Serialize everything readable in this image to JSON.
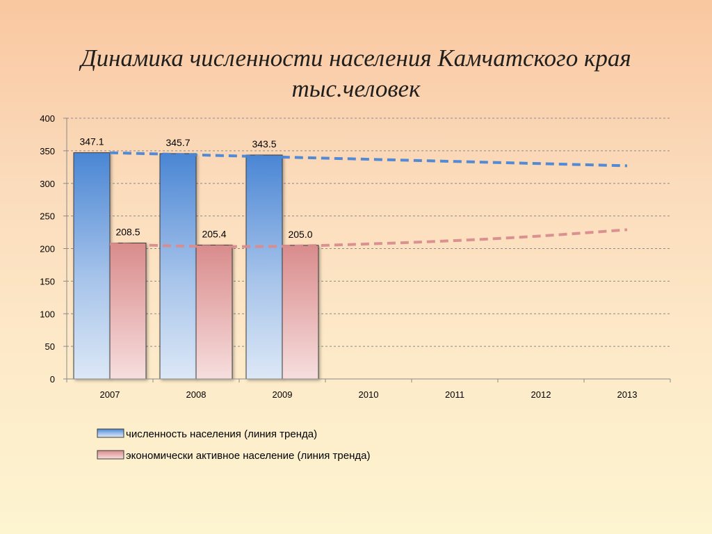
{
  "title_lines": [
    "Динамика численности населения Камчатского края",
    "тыс.человек"
  ],
  "chart_data": {
    "type": "bar",
    "title": "Динамика численности населения Камчатского края тыс.человек",
    "categories": [
      "2007",
      "2008",
      "2009",
      "2010",
      "2011",
      "2012",
      "2013"
    ],
    "ylim": [
      0,
      400
    ],
    "yticks": [
      0,
      50,
      100,
      150,
      200,
      250,
      300,
      350,
      400
    ],
    "ytick_labels": [
      "0",
      "50",
      "100",
      "150",
      "200",
      "250",
      "300",
      "350",
      "400"
    ],
    "grid": true,
    "legend_position": "bottom",
    "series": [
      {
        "name": "численность населения (линия тренда)",
        "values": [
          347.1,
          345.7,
          343.5,
          null,
          null,
          null,
          null
        ],
        "labels": [
          "347.1",
          "345.7",
          "343.5"
        ],
        "color": "#4a86d4",
        "trend": [
          {
            "x": "2007",
            "y": 347
          },
          {
            "x": "2013",
            "y": 327
          }
        ]
      },
      {
        "name": "экономически активное население (линия тренда)",
        "values": [
          208.5,
          205.4,
          205.0,
          null,
          null,
          null,
          null
        ],
        "labels": [
          "208.5",
          "205.4",
          "205.0"
        ],
        "color": "#d98c8c",
        "trend": [
          {
            "x": "2007",
            "y": 207
          },
          {
            "x": "2008",
            "y": 203
          },
          {
            "x": "2009",
            "y": 203
          },
          {
            "x": "2010",
            "y": 207
          },
          {
            "x": "2011",
            "y": 212
          },
          {
            "x": "2012",
            "y": 219
          },
          {
            "x": "2013",
            "y": 229
          }
        ]
      }
    ]
  }
}
